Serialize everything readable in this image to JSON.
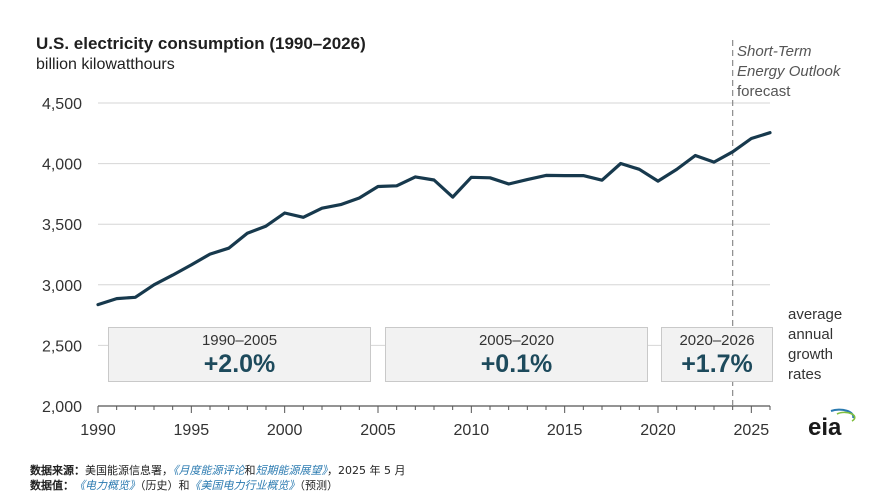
{
  "chart_data": {
    "type": "line",
    "title": "U.S. electricity consumption (1990–2026)",
    "ylabel": "billion kilowatthours",
    "xlabel": "",
    "xlim": [
      1990,
      2026
    ],
    "ylim": [
      2000,
      4500
    ],
    "xticks": [
      1990,
      1995,
      2000,
      2005,
      2010,
      2015,
      2020,
      2025
    ],
    "xtick_labels": [
      "1990",
      "1995",
      "2000",
      "2005",
      "2010",
      "2015",
      "2020",
      "2025"
    ],
    "yticks": [
      2000,
      2500,
      3000,
      3500,
      4000,
      4500
    ],
    "ytick_labels": [
      "2,000",
      "2,500",
      "3,000",
      "3,500",
      "4,000",
      "4,500"
    ],
    "series": [
      {
        "name": "U.S. electricity consumption",
        "color": "#17394d",
        "x": [
          1990,
          1991,
          1992,
          1993,
          1994,
          1995,
          1996,
          1997,
          1998,
          1999,
          2000,
          2001,
          2002,
          2003,
          2004,
          2005,
          2006,
          2007,
          2008,
          2009,
          2010,
          2011,
          2012,
          2013,
          2014,
          2015,
          2016,
          2017,
          2018,
          2019,
          2020,
          2021,
          2022,
          2023,
          2024,
          2025,
          2026
        ],
        "values": [
          2837,
          2886,
          2897,
          3000,
          3080,
          3164,
          3253,
          3302,
          3425,
          3484,
          3592,
          3557,
          3632,
          3662,
          3716,
          3811,
          3817,
          3890,
          3865,
          3724,
          3887,
          3883,
          3832,
          3868,
          3903,
          3901,
          3901,
          3863,
          4001,
          3953,
          3856,
          3952,
          4067,
          4012,
          4097,
          4207,
          4255
        ]
      }
    ],
    "forecast_start": 2024,
    "forecast_label_italic": [
      "Short-Term",
      "Energy Outlook"
    ],
    "forecast_label_plain": "forecast",
    "growth_label": "average annual growth rates",
    "growth_rates": [
      {
        "period": "1990–2005",
        "rate": "+2.0%"
      },
      {
        "period": "2005–2020",
        "rate": "+0.1%"
      },
      {
        "period": "2020–2026",
        "rate": "+1.7%"
      }
    ],
    "grid": true
  },
  "colors": {
    "line": "#17394d",
    "forecast_line": "#8a8a8a",
    "grid": "#d6d6d6",
    "axis": "#555555",
    "rate_text": "#1d4a5c"
  },
  "footer": {
    "source_label": "数据来源：",
    "source_prefix": "美国能源信息署，",
    "source_link1": "《月度能源评论",
    "source_and": "和",
    "source_link2": "短期能源展望》",
    "source_date": "，2025 年 5 月",
    "values_label": "数据值：",
    "values_link1": "《电力概览》",
    "values_hist": "（历史）和",
    "values_link2": "《美国电力行业概览》",
    "values_proj": "（预测）"
  },
  "logo_text": "eia"
}
